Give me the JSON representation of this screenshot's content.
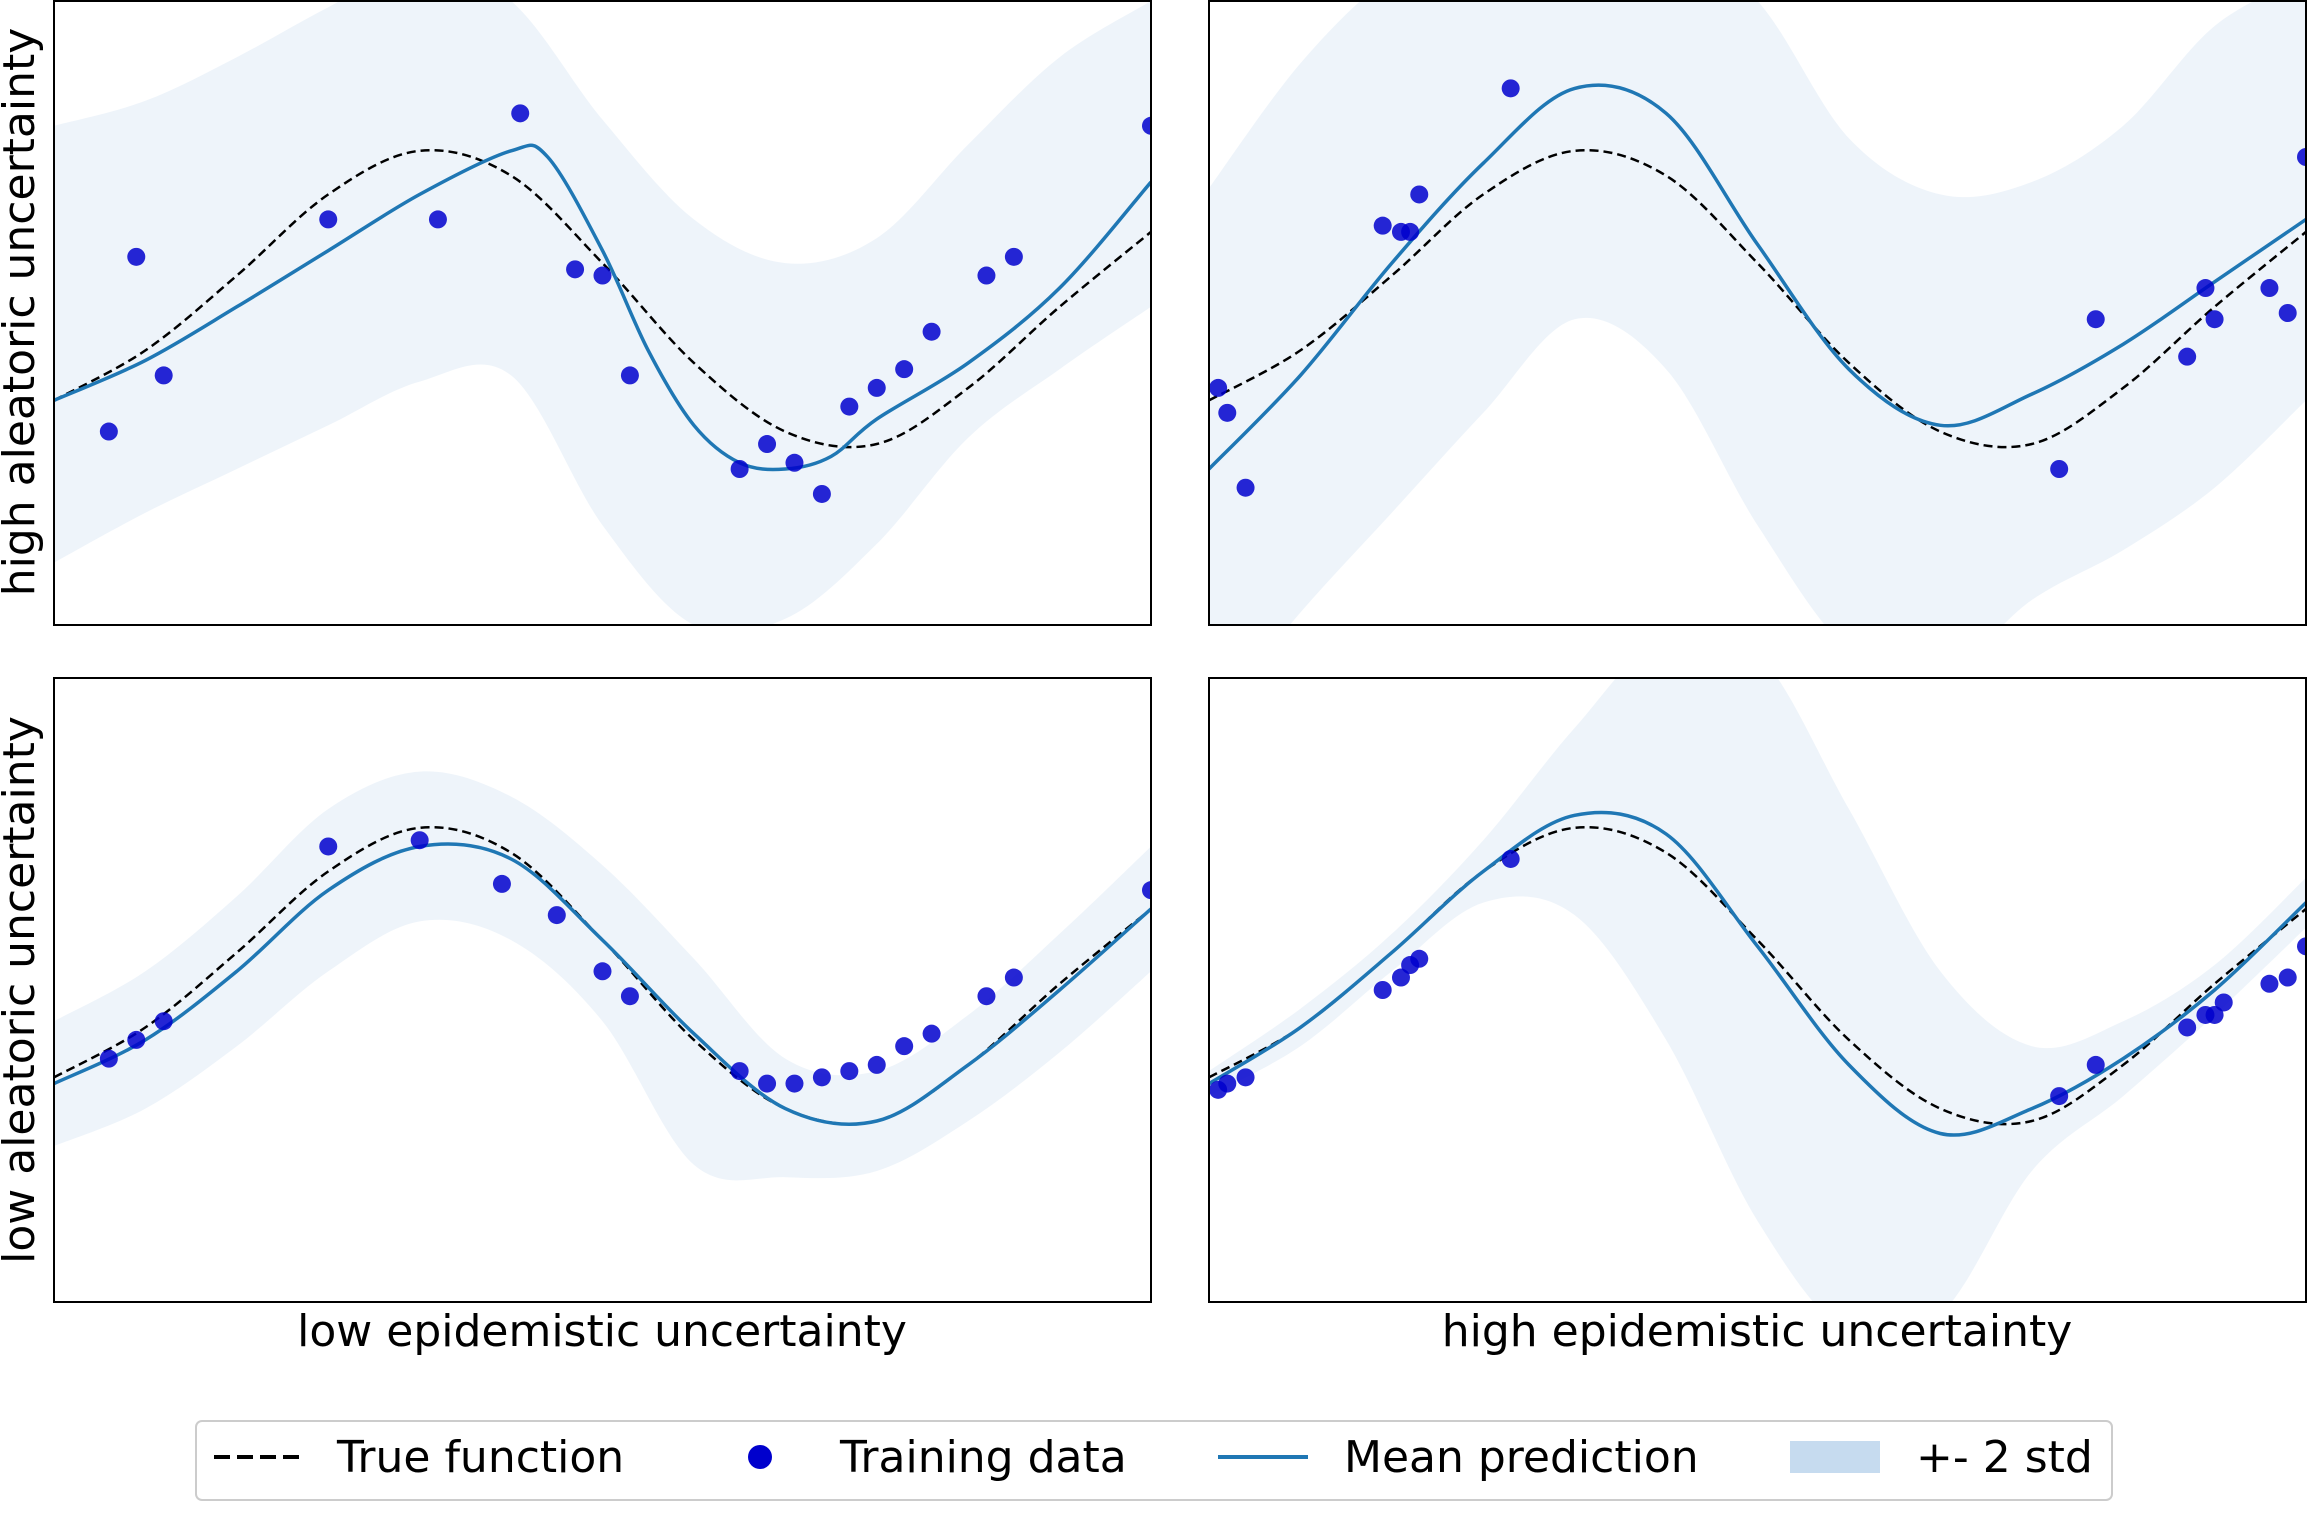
{
  "chart_data": {
    "type": "line",
    "x_range": [
      -3,
      3
    ],
    "y_range": [
      -2.5,
      2.5
    ],
    "row_labels": [
      "high aleatoric uncertainty",
      "low aleatoric uncertainty"
    ],
    "col_labels": [
      "low epidemistic uncertainty",
      "high epidemistic uncertainty"
    ],
    "legend": {
      "true_function": "True function",
      "training_data": "Training data",
      "mean_prediction": "Mean prediction",
      "band": "+- 2 std"
    },
    "colors": {
      "true_function": "#000000",
      "training_data": "#0000cd",
      "mean_prediction": "#1f77b4",
      "band": "#c6dbef"
    },
    "panels": [
      {
        "id": "top-left",
        "true_function": [
          [
            -3.0,
            -0.7
          ],
          [
            -2.5,
            -0.3
          ],
          [
            -2.0,
            0.3
          ],
          [
            -1.5,
            0.95
          ],
          [
            -1.0,
            1.3
          ],
          [
            -0.5,
            1.1
          ],
          [
            0.0,
            0.4
          ],
          [
            0.5,
            -0.4
          ],
          [
            1.0,
            -0.95
          ],
          [
            1.5,
            -1.05
          ],
          [
            2.0,
            -0.6
          ],
          [
            2.5,
            0.05
          ],
          [
            3.0,
            0.65
          ]
        ],
        "mean": [
          [
            -3.0,
            -0.7
          ],
          [
            -2.5,
            -0.38
          ],
          [
            -2.0,
            0.05
          ],
          [
            -1.5,
            0.5
          ],
          [
            -1.0,
            0.95
          ],
          [
            -0.5,
            1.3
          ],
          [
            -0.3,
            1.25
          ],
          [
            0.0,
            0.5
          ],
          [
            0.25,
            -0.3
          ],
          [
            0.5,
            -0.9
          ],
          [
            0.75,
            -1.2
          ],
          [
            1.0,
            -1.25
          ],
          [
            1.25,
            -1.15
          ],
          [
            1.5,
            -0.85
          ],
          [
            2.0,
            -0.4
          ],
          [
            2.5,
            0.2
          ],
          [
            3.0,
            1.05
          ]
        ],
        "upper": [
          [
            -3.0,
            1.5
          ],
          [
            -2.5,
            1.7
          ],
          [
            -2.0,
            2.05
          ],
          [
            -1.5,
            2.45
          ],
          [
            -1.0,
            2.8
          ],
          [
            -0.5,
            2.5
          ],
          [
            0.0,
            1.55
          ],
          [
            0.5,
            0.75
          ],
          [
            1.0,
            0.4
          ],
          [
            1.5,
            0.6
          ],
          [
            2.0,
            1.35
          ],
          [
            2.5,
            2.05
          ],
          [
            3.0,
            2.5
          ]
        ],
        "lower": [
          [
            -3.0,
            -2.0
          ],
          [
            -2.5,
            -1.6
          ],
          [
            -2.0,
            -1.25
          ],
          [
            -1.5,
            -0.9
          ],
          [
            -1.0,
            -0.55
          ],
          [
            -0.5,
            -0.5
          ],
          [
            0.0,
            -1.7
          ],
          [
            0.5,
            -2.5
          ],
          [
            1.0,
            -2.45
          ],
          [
            1.5,
            -1.85
          ],
          [
            2.0,
            -1.0
          ],
          [
            2.5,
            -0.45
          ],
          [
            3.0,
            0.05
          ]
        ],
        "points": [
          [
            -2.7,
            -0.95
          ],
          [
            -2.55,
            0.45
          ],
          [
            -2.4,
            -0.5
          ],
          [
            -1.5,
            0.75
          ],
          [
            -0.9,
            0.75
          ],
          [
            -0.45,
            1.6
          ],
          [
            -0.15,
            0.35
          ],
          [
            0.0,
            0.3
          ],
          [
            0.15,
            -0.5
          ],
          [
            0.75,
            -1.25
          ],
          [
            0.9,
            -1.05
          ],
          [
            1.05,
            -1.2
          ],
          [
            1.2,
            -1.45
          ],
          [
            1.35,
            -0.75
          ],
          [
            1.5,
            -0.6
          ],
          [
            1.65,
            -0.45
          ],
          [
            1.8,
            -0.15
          ],
          [
            2.1,
            0.3
          ],
          [
            2.25,
            0.45
          ],
          [
            3.0,
            1.5
          ]
        ]
      },
      {
        "id": "top-right",
        "true_function": [
          [
            -3.0,
            -0.7
          ],
          [
            -2.5,
            -0.3
          ],
          [
            -2.0,
            0.3
          ],
          [
            -1.5,
            0.95
          ],
          [
            -1.0,
            1.3
          ],
          [
            -0.5,
            1.1
          ],
          [
            0.0,
            0.4
          ],
          [
            0.5,
            -0.4
          ],
          [
            1.0,
            -0.95
          ],
          [
            1.5,
            -1.05
          ],
          [
            2.0,
            -0.6
          ],
          [
            2.5,
            0.05
          ],
          [
            3.0,
            0.65
          ]
        ],
        "mean": [
          [
            -3.0,
            -1.25
          ],
          [
            -2.5,
            -0.5
          ],
          [
            -2.0,
            0.4
          ],
          [
            -1.5,
            1.2
          ],
          [
            -1.0,
            1.8
          ],
          [
            -0.5,
            1.6
          ],
          [
            0.0,
            0.55
          ],
          [
            0.5,
            -0.45
          ],
          [
            1.0,
            -0.9
          ],
          [
            1.5,
            -0.65
          ],
          [
            2.0,
            -0.25
          ],
          [
            2.5,
            0.25
          ],
          [
            3.0,
            0.75
          ]
        ],
        "upper": [
          [
            -3.0,
            1.0
          ],
          [
            -2.5,
            2.0
          ],
          [
            -2.0,
            2.7
          ],
          [
            -1.5,
            3.0
          ],
          [
            -1.0,
            3.1
          ],
          [
            -0.5,
            3.0
          ],
          [
            0.0,
            2.5
          ],
          [
            0.5,
            1.4
          ],
          [
            1.0,
            0.95
          ],
          [
            1.5,
            1.05
          ],
          [
            2.0,
            1.5
          ],
          [
            2.5,
            2.3
          ],
          [
            3.0,
            2.7
          ]
        ],
        "lower": [
          [
            -3.0,
            -3.3
          ],
          [
            -2.5,
            -2.4
          ],
          [
            -2.0,
            -1.6
          ],
          [
            -1.5,
            -0.8
          ],
          [
            -1.0,
            -0.05
          ],
          [
            -0.5,
            -0.45
          ],
          [
            0.0,
            -1.7
          ],
          [
            0.5,
            -2.7
          ],
          [
            1.0,
            -2.9
          ],
          [
            1.5,
            -2.3
          ],
          [
            2.0,
            -1.9
          ],
          [
            2.5,
            -1.4
          ],
          [
            3.0,
            -0.7
          ]
        ],
        "points": [
          [
            -2.95,
            -0.6
          ],
          [
            -2.9,
            -0.8
          ],
          [
            -2.8,
            -1.4
          ],
          [
            -2.05,
            0.7
          ],
          [
            -1.95,
            0.65
          ],
          [
            -1.9,
            0.65
          ],
          [
            -1.85,
            0.95
          ],
          [
            -1.35,
            1.8
          ],
          [
            1.65,
            -1.25
          ],
          [
            1.85,
            -0.05
          ],
          [
            2.35,
            -0.35
          ],
          [
            2.5,
            -0.05
          ],
          [
            2.45,
            0.2
          ],
          [
            2.8,
            0.2
          ],
          [
            2.9,
            0.0
          ],
          [
            3.0,
            1.25
          ]
        ]
      },
      {
        "id": "bottom-left",
        "true_function": [
          [
            -3.0,
            -0.7
          ],
          [
            -2.5,
            -0.3
          ],
          [
            -2.0,
            0.3
          ],
          [
            -1.5,
            0.95
          ],
          [
            -1.0,
            1.3
          ],
          [
            -0.5,
            1.1
          ],
          [
            0.0,
            0.4
          ],
          [
            0.5,
            -0.4
          ],
          [
            1.0,
            -0.95
          ],
          [
            1.5,
            -1.05
          ],
          [
            2.0,
            -0.6
          ],
          [
            2.5,
            0.05
          ],
          [
            3.0,
            0.65
          ]
        ],
        "mean": [
          [
            -3.0,
            -0.75
          ],
          [
            -2.5,
            -0.4
          ],
          [
            -2.0,
            0.15
          ],
          [
            -1.5,
            0.8
          ],
          [
            -1.0,
            1.15
          ],
          [
            -0.5,
            1.05
          ],
          [
            0.0,
            0.4
          ],
          [
            0.5,
            -0.35
          ],
          [
            1.0,
            -0.95
          ],
          [
            1.5,
            -1.05
          ],
          [
            2.0,
            -0.6
          ],
          [
            2.5,
            0.0
          ],
          [
            3.0,
            0.65
          ]
        ],
        "upper": [
          [
            -3.0,
            -0.25
          ],
          [
            -2.5,
            0.15
          ],
          [
            -2.0,
            0.75
          ],
          [
            -1.5,
            1.45
          ],
          [
            -1.0,
            1.75
          ],
          [
            -0.5,
            1.55
          ],
          [
            0.0,
            1.0
          ],
          [
            0.5,
            0.25
          ],
          [
            1.0,
            -0.55
          ],
          [
            1.5,
            -0.65
          ],
          [
            2.0,
            -0.2
          ],
          [
            2.5,
            0.45
          ],
          [
            3.0,
            1.15
          ]
        ],
        "lower": [
          [
            -3.0,
            -1.25
          ],
          [
            -2.5,
            -0.95
          ],
          [
            -2.0,
            -0.45
          ],
          [
            -1.5,
            0.15
          ],
          [
            -1.0,
            0.55
          ],
          [
            -0.5,
            0.4
          ],
          [
            0.0,
            -0.25
          ],
          [
            0.5,
            -1.4
          ],
          [
            1.0,
            -1.5
          ],
          [
            1.5,
            -1.45
          ],
          [
            2.0,
            -1.05
          ],
          [
            2.5,
            -0.5
          ],
          [
            3.0,
            0.15
          ]
        ],
        "points": [
          [
            -2.7,
            -0.55
          ],
          [
            -2.55,
            -0.4
          ],
          [
            -2.4,
            -0.25
          ],
          [
            -1.5,
            1.15
          ],
          [
            -1.0,
            1.2
          ],
          [
            -0.55,
            0.85
          ],
          [
            -0.25,
            0.6
          ],
          [
            0.0,
            0.15
          ],
          [
            0.15,
            -0.05
          ],
          [
            0.75,
            -0.65
          ],
          [
            0.9,
            -0.75
          ],
          [
            1.05,
            -0.75
          ],
          [
            1.2,
            -0.7
          ],
          [
            1.35,
            -0.65
          ],
          [
            1.5,
            -0.6
          ],
          [
            1.65,
            -0.45
          ],
          [
            1.8,
            -0.35
          ],
          [
            2.1,
            -0.05
          ],
          [
            2.25,
            0.1
          ],
          [
            3.0,
            0.8
          ]
        ]
      },
      {
        "id": "bottom-right",
        "true_function": [
          [
            -3.0,
            -0.7
          ],
          [
            -2.5,
            -0.3
          ],
          [
            -2.0,
            0.3
          ],
          [
            -1.5,
            0.95
          ],
          [
            -1.0,
            1.3
          ],
          [
            -0.5,
            1.1
          ],
          [
            0.0,
            0.4
          ],
          [
            0.5,
            -0.4
          ],
          [
            1.0,
            -0.95
          ],
          [
            1.5,
            -1.05
          ],
          [
            2.0,
            -0.6
          ],
          [
            2.5,
            0.05
          ],
          [
            3.0,
            0.65
          ]
        ],
        "mean": [
          [
            -3.0,
            -0.75
          ],
          [
            -2.5,
            -0.3
          ],
          [
            -2.0,
            0.3
          ],
          [
            -1.5,
            0.95
          ],
          [
            -1.0,
            1.4
          ],
          [
            -0.5,
            1.25
          ],
          [
            0.0,
            0.35
          ],
          [
            0.5,
            -0.6
          ],
          [
            1.0,
            -1.15
          ],
          [
            1.5,
            -0.95
          ],
          [
            2.0,
            -0.55
          ],
          [
            2.5,
            0.0
          ],
          [
            3.0,
            0.7
          ]
        ],
        "upper": [
          [
            -3.0,
            -0.65
          ],
          [
            -2.5,
            -0.15
          ],
          [
            -2.0,
            0.45
          ],
          [
            -1.5,
            1.2
          ],
          [
            -1.0,
            2.1
          ],
          [
            -0.5,
            2.85
          ],
          [
            0.0,
            2.7
          ],
          [
            0.5,
            1.45
          ],
          [
            1.0,
            0.15
          ],
          [
            1.5,
            -0.45
          ],
          [
            2.0,
            -0.25
          ],
          [
            2.5,
            0.2
          ],
          [
            3.0,
            0.9
          ]
        ],
        "lower": [
          [
            -3.0,
            -0.85
          ],
          [
            -2.5,
            -0.45
          ],
          [
            -2.0,
            0.15
          ],
          [
            -1.5,
            0.7
          ],
          [
            -1.0,
            0.6
          ],
          [
            -0.5,
            -0.4
          ],
          [
            0.0,
            -1.85
          ],
          [
            0.5,
            -2.75
          ],
          [
            1.0,
            -2.6
          ],
          [
            1.5,
            -1.45
          ],
          [
            2.0,
            -0.85
          ],
          [
            2.5,
            -0.2
          ],
          [
            3.0,
            0.5
          ]
        ],
        "points": [
          [
            -2.95,
            -0.8
          ],
          [
            -2.9,
            -0.75
          ],
          [
            -2.8,
            -0.7
          ],
          [
            -2.05,
            0.0
          ],
          [
            -1.95,
            0.1
          ],
          [
            -1.9,
            0.2
          ],
          [
            -1.85,
            0.25
          ],
          [
            -1.35,
            1.05
          ],
          [
            1.65,
            -0.85
          ],
          [
            1.85,
            -0.6
          ],
          [
            2.35,
            -0.3
          ],
          [
            2.5,
            -0.2
          ],
          [
            2.45,
            -0.2
          ],
          [
            2.55,
            -0.1
          ],
          [
            2.8,
            0.05
          ],
          [
            2.9,
            0.1
          ],
          [
            3.0,
            0.35
          ]
        ]
      }
    ]
  }
}
